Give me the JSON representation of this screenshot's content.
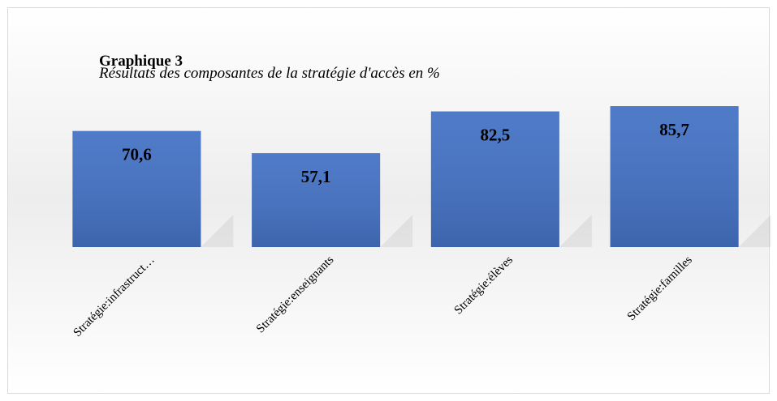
{
  "chart_data": {
    "type": "bar",
    "title": "Graphique 3",
    "subtitle": "Résultats des composantes de la stratégie d'accès en %",
    "categories": [
      "Stratégie:infrastruct…",
      "Stratégie:enseignants",
      "Stratégie:élèves",
      "Stratégie:familles"
    ],
    "values": [
      70.6,
      57.1,
      82.5,
      85.7
    ],
    "value_labels": [
      "70,6",
      "57,1",
      "82,5",
      "85,7"
    ],
    "color": "#4472c4",
    "ylim": [
      0,
      100
    ]
  }
}
